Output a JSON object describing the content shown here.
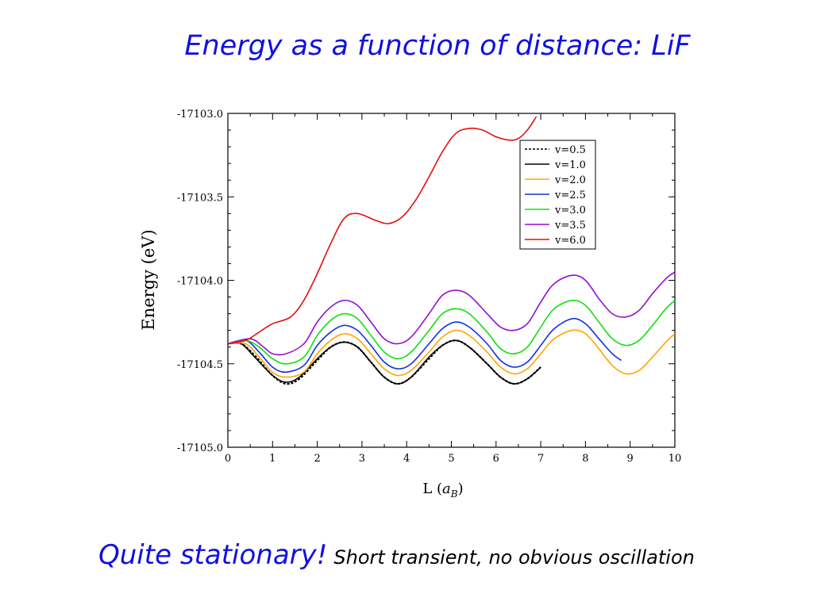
{
  "slide": {
    "title": "Energy as a function of distance: LiF",
    "caption_main": "Quite stationary!",
    "caption_sub": "Short transient, no obvious oscillation"
  },
  "chart_data": {
    "type": "line",
    "title": "",
    "xlabel": "L (a_B)",
    "xlabel_main": "L (",
    "xlabel_var": "a",
    "xlabel_sub": "B",
    "xlabel_close": ")",
    "ylabel": "Energy (eV)",
    "xlim": [
      0,
      10
    ],
    "ylim": [
      -17105.0,
      -17103.0
    ],
    "x_ticks": [
      "0",
      "1",
      "2",
      "3",
      "4",
      "5",
      "6",
      "7",
      "8",
      "9",
      "10"
    ],
    "y_ticks": [
      "-17103.0",
      "-17103.5",
      "-17104.0",
      "-17104.5",
      "-17105.0"
    ],
    "grid": false,
    "legend_position": "top-right",
    "series": [
      {
        "name": "v=0.5",
        "color": "#000000",
        "dash": true,
        "x": [
          0,
          0.3,
          0.6,
          1.0,
          1.3,
          1.6,
          2.0,
          2.3,
          2.6,
          2.9,
          3.2,
          3.5,
          3.8,
          4.1,
          4.5,
          4.8,
          5.1,
          5.4,
          5.8,
          6.1,
          6.4,
          6.7,
          7.0
        ],
        "y": [
          -17104.38,
          -17104.38,
          -17104.45,
          -17104.57,
          -17104.62,
          -17104.59,
          -17104.48,
          -17104.4,
          -17104.37,
          -17104.4,
          -17104.49,
          -17104.58,
          -17104.62,
          -17104.58,
          -17104.47,
          -17104.39,
          -17104.36,
          -17104.4,
          -17104.5,
          -17104.58,
          -17104.62,
          -17104.59,
          -17104.52
        ]
      },
      {
        "name": "v=1.0",
        "color": "#000000",
        "x": [
          0,
          0.3,
          0.6,
          1.0,
          1.3,
          1.6,
          2.0,
          2.3,
          2.6,
          2.9,
          3.2,
          3.5,
          3.8,
          4.1,
          4.5,
          4.8,
          5.1,
          5.4,
          5.8,
          6.1,
          6.4,
          6.7,
          7.0
        ],
        "y": [
          -17104.38,
          -17104.38,
          -17104.46,
          -17104.57,
          -17104.61,
          -17104.58,
          -17104.47,
          -17104.4,
          -17104.37,
          -17104.4,
          -17104.49,
          -17104.58,
          -17104.62,
          -17104.58,
          -17104.46,
          -17104.39,
          -17104.36,
          -17104.4,
          -17104.5,
          -17104.58,
          -17104.62,
          -17104.59,
          -17104.52
        ]
      },
      {
        "name": "v=2.0",
        "color": "#ffa500",
        "x": [
          0,
          0.4,
          0.7,
          1.0,
          1.3,
          1.7,
          2.0,
          2.3,
          2.6,
          2.9,
          3.2,
          3.5,
          3.8,
          4.1,
          4.5,
          4.8,
          5.1,
          5.4,
          5.8,
          6.1,
          6.4,
          6.7,
          7.0,
          7.3,
          7.7,
          8.0,
          8.3,
          8.6,
          8.9,
          9.2,
          9.5,
          9.8,
          10.0
        ],
        "y": [
          -17104.38,
          -17104.38,
          -17104.46,
          -17104.55,
          -17104.58,
          -17104.55,
          -17104.44,
          -17104.36,
          -17104.32,
          -17104.35,
          -17104.44,
          -17104.53,
          -17104.57,
          -17104.54,
          -17104.43,
          -17104.34,
          -17104.3,
          -17104.33,
          -17104.43,
          -17104.52,
          -17104.56,
          -17104.53,
          -17104.44,
          -17104.35,
          -17104.3,
          -17104.32,
          -17104.41,
          -17104.51,
          -17104.56,
          -17104.54,
          -17104.46,
          -17104.37,
          -17104.32
        ]
      },
      {
        "name": "v=2.5",
        "color": "#1530e0",
        "x": [
          0,
          0.4,
          0.7,
          1.0,
          1.3,
          1.7,
          2.0,
          2.3,
          2.6,
          2.9,
          3.2,
          3.5,
          3.8,
          4.1,
          4.5,
          4.8,
          5.1,
          5.4,
          5.8,
          6.1,
          6.4,
          6.7,
          7.0,
          7.3,
          7.7,
          8.0,
          8.3,
          8.6,
          8.8
        ],
        "y": [
          -17104.38,
          -17104.36,
          -17104.43,
          -17104.52,
          -17104.55,
          -17104.51,
          -17104.39,
          -17104.31,
          -17104.27,
          -17104.3,
          -17104.39,
          -17104.49,
          -17104.53,
          -17104.5,
          -17104.38,
          -17104.29,
          -17104.25,
          -17104.28,
          -17104.38,
          -17104.48,
          -17104.52,
          -17104.49,
          -17104.39,
          -17104.29,
          -17104.23,
          -17104.26,
          -17104.35,
          -17104.44,
          -17104.48
        ]
      },
      {
        "name": "v=3.0",
        "color": "#10e010",
        "x": [
          0,
          0.4,
          0.7,
          1.0,
          1.3,
          1.7,
          2.0,
          2.3,
          2.6,
          2.9,
          3.2,
          3.5,
          3.8,
          4.1,
          4.5,
          4.8,
          5.1,
          5.4,
          5.8,
          6.1,
          6.4,
          6.7,
          7.0,
          7.3,
          7.7,
          8.0,
          8.3,
          8.6,
          8.9,
          9.2,
          9.5,
          9.8,
          10.0
        ],
        "y": [
          -17104.38,
          -17104.36,
          -17104.4,
          -17104.47,
          -17104.5,
          -17104.46,
          -17104.33,
          -17104.24,
          -17104.2,
          -17104.23,
          -17104.33,
          -17104.43,
          -17104.47,
          -17104.43,
          -17104.3,
          -17104.2,
          -17104.17,
          -17104.2,
          -17104.31,
          -17104.41,
          -17104.44,
          -17104.4,
          -17104.28,
          -17104.17,
          -17104.12,
          -17104.15,
          -17104.25,
          -17104.35,
          -17104.39,
          -17104.36,
          -17104.27,
          -17104.17,
          -17104.12
        ]
      },
      {
        "name": "v=3.5",
        "color": "#9010d0",
        "x": [
          0,
          0.5,
          0.8,
          1.0,
          1.3,
          1.7,
          2.0,
          2.3,
          2.6,
          2.9,
          3.2,
          3.5,
          3.8,
          4.1,
          4.5,
          4.8,
          5.1,
          5.4,
          5.8,
          6.1,
          6.4,
          6.7,
          7.0,
          7.3,
          7.7,
          8.0,
          8.3,
          8.6,
          8.9,
          9.2,
          9.5,
          9.8,
          10.0
        ],
        "y": [
          -17104.38,
          -17104.35,
          -17104.4,
          -17104.44,
          -17104.44,
          -17104.38,
          -17104.25,
          -17104.16,
          -17104.12,
          -17104.15,
          -17104.25,
          -17104.35,
          -17104.38,
          -17104.34,
          -17104.2,
          -17104.09,
          -17104.06,
          -17104.09,
          -17104.2,
          -17104.28,
          -17104.3,
          -17104.26,
          -17104.13,
          -17104.02,
          -17103.97,
          -17104.0,
          -17104.11,
          -17104.2,
          -17104.22,
          -17104.18,
          -17104.08,
          -17103.99,
          -17103.95
        ]
      },
      {
        "name": "v=6.0",
        "color": "#e01010",
        "x": [
          0,
          0.4,
          0.7,
          1.0,
          1.4,
          1.7,
          2.0,
          2.3,
          2.6,
          2.9,
          3.3,
          3.6,
          3.9,
          4.2,
          4.5,
          4.8,
          5.1,
          5.4,
          5.7,
          6.0,
          6.3,
          6.5,
          6.7,
          6.9
        ],
        "y": [
          -17104.38,
          -17104.36,
          -17104.31,
          -17104.26,
          -17104.22,
          -17104.12,
          -17103.96,
          -17103.78,
          -17103.63,
          -17103.6,
          -17103.64,
          -17103.66,
          -17103.62,
          -17103.52,
          -17103.38,
          -17103.23,
          -17103.12,
          -17103.09,
          -17103.1,
          -17103.14,
          -17103.16,
          -17103.15,
          -17103.1,
          -17103.02
        ]
      }
    ]
  }
}
